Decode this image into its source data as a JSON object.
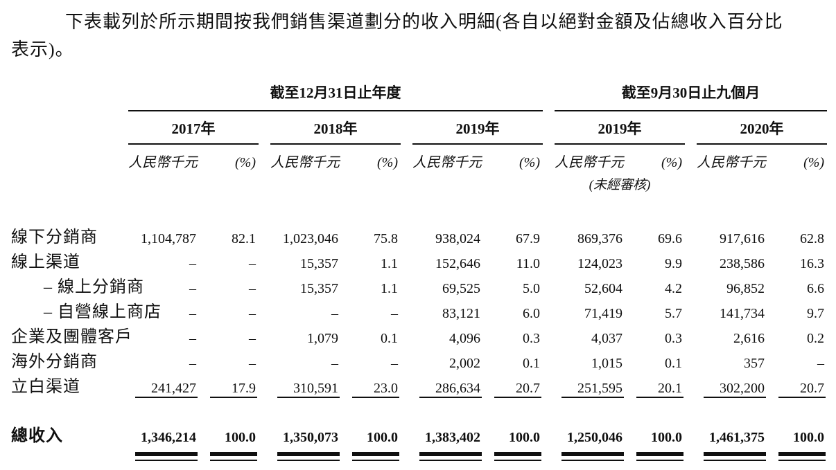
{
  "intro": "下表載列於所示期間按我們銷售渠道劃分的收入明細(各自以絕對金額及佔總收入百分比表示)。",
  "table": {
    "period_groups": [
      {
        "label": "截至12月31日止年度"
      },
      {
        "label": "截至9月30日止九個月"
      }
    ],
    "year_headers": [
      "2017年",
      "2018年",
      "2019年",
      "2019年",
      "2020年"
    ],
    "amount_unit_header": "人民幣千元",
    "percent_header": "(%)",
    "unaudited_note": "(未經審核)",
    "rows": [
      {
        "label": "線下分銷商",
        "values": [
          "1,104,787",
          "82.1",
          "1,023,046",
          "75.8",
          "938,024",
          "67.9",
          "869,376",
          "69.6",
          "917,616",
          "62.8"
        ]
      },
      {
        "label": "線上渠道",
        "values": [
          "–",
          "–",
          "15,357",
          "1.1",
          "152,646",
          "11.0",
          "124,023",
          "9.9",
          "238,586",
          "16.3"
        ]
      },
      {
        "label": "– 線上分銷商",
        "values": [
          "–",
          "–",
          "15,357",
          "1.1",
          "69,525",
          "5.0",
          "52,604",
          "4.2",
          "96,852",
          "6.6"
        ]
      },
      {
        "label": "– 自營線上商店",
        "values": [
          "–",
          "–",
          "–",
          "–",
          "83,121",
          "6.0",
          "71,419",
          "5.7",
          "141,734",
          "9.7"
        ]
      },
      {
        "label": "企業及團體客戶",
        "values": [
          "–",
          "–",
          "1,079",
          "0.1",
          "4,096",
          "0.3",
          "4,037",
          "0.3",
          "2,616",
          "0.2"
        ]
      },
      {
        "label": "海外分銷商",
        "values": [
          "–",
          "–",
          "–",
          "–",
          "2,002",
          "0.1",
          "1,015",
          "0.1",
          "357",
          "–"
        ]
      },
      {
        "label": "立白渠道",
        "values": [
          "241,427",
          "17.9",
          "310,591",
          "23.0",
          "286,634",
          "20.7",
          "251,595",
          "20.1",
          "302,200",
          "20.7"
        ]
      }
    ],
    "total": {
      "label": "總收入",
      "values": [
        "1,346,214",
        "100.0",
        "1,350,073",
        "100.0",
        "1,383,402",
        "100.0",
        "1,250,046",
        "100.0",
        "1,461,375",
        "100.0"
      ]
    }
  }
}
